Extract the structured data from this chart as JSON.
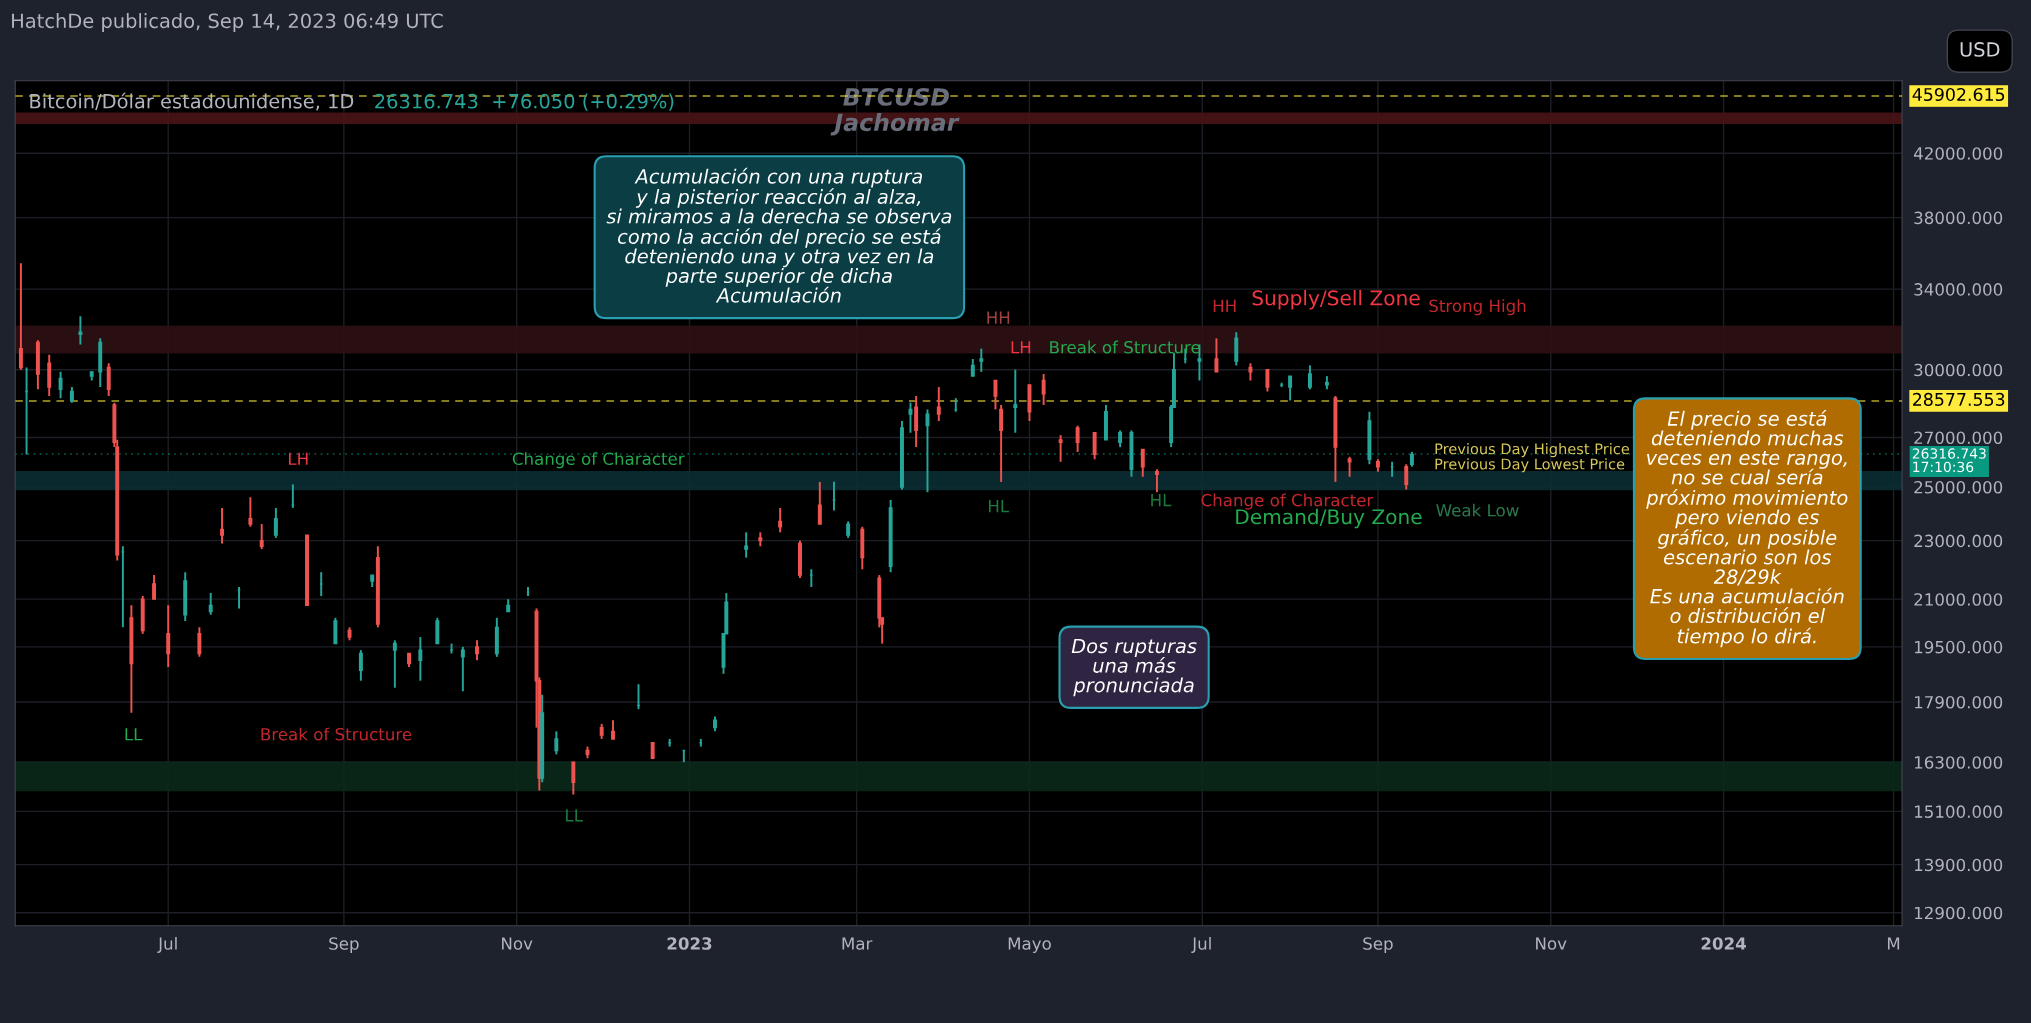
{
  "chart_data": {
    "type": "candlestick",
    "title": "Bitcoin/Dólar estadounidense, 1D",
    "subtitle": "26316.743  +76.050 (+0.29%)",
    "colors": [
      "#ef5350",
      "#26a69a",
      "#ef5350",
      "#ef5350",
      "#26a69a",
      "#26a69a",
      "#26a69a",
      "#26a69a",
      "#26a69a",
      "#ef5350",
      "#ef5350",
      "#ef5350",
      "#26a69a",
      "#ef5350",
      "#ef5350",
      "#ef5350",
      "#ef5350",
      "#26a69a",
      "#ef5350",
      "#26a69a",
      "#ef5350",
      "#26a69a",
      "#ef5350",
      "#ef5350",
      "#26a69a",
      "#26a69a",
      "#ef5350",
      "#26a69a",
      "#26a69a",
      "#ef5350",
      "#26a69a",
      "#26a69a",
      "#ef5350",
      "#26a69a",
      "#ef5350",
      "#26a69a",
      "#26a69a",
      "#26a69a",
      "#26a69a",
      "#ef5350",
      "#26a69a",
      "#26a69a",
      "#26a69a",
      "#ef5350",
      "#ef5350",
      "#26a69a",
      "#26a69a",
      "#ef5350",
      "#ef5350",
      "#ef5350",
      "#ef5350",
      "#26a69a",
      "#ef5350",
      "#26a69a",
      "#26a69a",
      "#26a69a",
      "#26a69a",
      "#26a69a",
      "#26a69a",
      "#26a69a",
      "#ef5350",
      "#ef5350",
      "#ef5350",
      "#26a69a",
      "#ef5350",
      "#26a69a",
      "#26a69a",
      "#ef5350",
      "#ef5350",
      "#ef5350",
      "#26a69a",
      "#26a69a",
      "#26a69a",
      "#ef5350",
      "#26a69a",
      "#ef5350",
      "#26a69a",
      "#26a69a",
      "#26a69a",
      "#ef5350",
      "#ef5350",
      "#26a69a",
      "#ef5350",
      "#ef5350",
      "#ef5350",
      "#ef5350",
      "#ef5350",
      "#26a69a",
      "#26a69a",
      "#26a69a",
      "#ef5350",
      "#ef5350",
      "#26a69a",
      "#26a69a",
      "#26a69a",
      "#26a69a",
      "#ef5350",
      "#26a69a",
      "#ef5350",
      "#ef5350",
      "#26a69a",
      "#26a69a",
      "#26a69a",
      "#26a69a",
      "#ef5350",
      "#ef5350",
      "#26a69a",
      "#ef5350",
      "#26a69a",
      "#ef5350",
      "#26a69a"
    ],
    "x": [
      "2022-05-10",
      "2022-05-12",
      "2022-05-16",
      "2022-05-20",
      "2022-05-24",
      "2022-05-28",
      "2022-05-31",
      "2022-06-04",
      "2022-06-07",
      "2022-06-10",
      "2022-06-12",
      "2022-06-13",
      "2022-06-15",
      "2022-06-18",
      "2022-06-22",
      "2022-06-26",
      "2022-07-01",
      "2022-07-07",
      "2022-07-12",
      "2022-07-16",
      "2022-07-20",
      "2022-07-26",
      "2022-07-30",
      "2022-08-03",
      "2022-08-08",
      "2022-08-14",
      "2022-08-19",
      "2022-08-24",
      "2022-08-29",
      "2022-09-03",
      "2022-09-07",
      "2022-09-11",
      "2022-09-13",
      "2022-09-19",
      "2022-09-24",
      "2022-09-28",
      "2022-10-04",
      "2022-10-09",
      "2022-10-13",
      "2022-10-18",
      "2022-10-25",
      "2022-10-29",
      "2022-11-05",
      "2022-11-08",
      "2022-11-09",
      "2022-11-10",
      "2022-11-15",
      "2022-11-21",
      "2022-11-26",
      "2022-12-01",
      "2022-12-05",
      "2022-12-14",
      "2022-12-19",
      "2022-12-25",
      "2022-12-30",
      "2023-01-05",
      "2023-01-10",
      "2023-01-13",
      "2023-01-14",
      "2023-01-21",
      "2023-01-26",
      "2023-02-02",
      "2023-02-09",
      "2023-02-13",
      "2023-02-16",
      "2023-02-21",
      "2023-02-26",
      "2023-03-03",
      "2023-03-09",
      "2023-03-10",
      "2023-03-13",
      "2023-03-17",
      "2023-03-20",
      "2023-03-22",
      "2023-03-26",
      "2023-03-30",
      "2023-04-05",
      "2023-04-11",
      "2023-04-14",
      "2023-04-19",
      "2023-04-21",
      "2023-04-26",
      "2023-05-01",
      "2023-05-06",
      "2023-05-12",
      "2023-05-18",
      "2023-05-24",
      "2023-05-28",
      "2023-06-02",
      "2023-06-06",
      "2023-06-10",
      "2023-06-15",
      "2023-06-20",
      "2023-06-21",
      "2023-06-25",
      "2023-06-30",
      "2023-07-06",
      "2023-07-13",
      "2023-07-18",
      "2023-07-24",
      "2023-07-29",
      "2023-08-01",
      "2023-08-08",
      "2023-08-14",
      "2023-08-17",
      "2023-08-22",
      "2023-08-29",
      "2023-09-01",
      "2023-09-06",
      "2023-09-11",
      "2023-09-13"
    ],
    "ohlc": [
      [
        31000,
        35400,
        30000,
        30100
      ],
      [
        29000,
        30100,
        26300,
        29000
      ],
      [
        31300,
        31400,
        29100,
        29800
      ],
      [
        30300,
        30700,
        28800,
        29200
      ],
      [
        29100,
        29900,
        28700,
        29600
      ],
      [
        28600,
        29200,
        28500,
        29000
      ],
      [
        31700,
        32600,
        31200,
        31800
      ],
      [
        29700,
        29900,
        29500,
        29900
      ],
      [
        29900,
        31500,
        29200,
        31300
      ],
      [
        30100,
        30300,
        28800,
        29100
      ],
      [
        28400,
        28500,
        26600,
        26800
      ],
      [
        26600,
        26900,
        22300,
        22500
      ],
      [
        22600,
        22800,
        20100,
        22600
      ],
      [
        20400,
        20800,
        17600,
        19000
      ],
      [
        21000,
        21100,
        19900,
        20000
      ],
      [
        21500,
        21800,
        21000,
        21000
      ],
      [
        19900,
        20800,
        18900,
        19300
      ],
      [
        20500,
        21900,
        20300,
        21600
      ],
      [
        19900,
        20100,
        19200,
        19300
      ],
      [
        20600,
        21200,
        20500,
        20800
      ],
      [
        23400,
        24200,
        22900,
        23200
      ],
      [
        21300,
        21400,
        20700,
        21300
      ],
      [
        23800,
        24600,
        23500,
        23600
      ],
      [
        23000,
        23600,
        22700,
        22800
      ],
      [
        23200,
        24200,
        23100,
        23800
      ],
      [
        24300,
        25100,
        24200,
        24300
      ],
      [
        23200,
        23200,
        20800,
        20800
      ],
      [
        21500,
        21900,
        21100,
        21500
      ],
      [
        19600,
        20400,
        19600,
        20300
      ],
      [
        20000,
        20100,
        19700,
        19800
      ],
      [
        18800,
        19400,
        18500,
        19300
      ],
      [
        21600,
        21800,
        21400,
        21800
      ],
      [
        22400,
        22800,
        20100,
        20200
      ],
      [
        19400,
        19700,
        18300,
        19600
      ],
      [
        19300,
        19300,
        18900,
        19000
      ],
      [
        19100,
        19800,
        18500,
        19400
      ],
      [
        19600,
        20400,
        19600,
        20300
      ],
      [
        19400,
        19600,
        19300,
        19400
      ],
      [
        19200,
        19500,
        18200,
        19400
      ],
      [
        19500,
        19700,
        19100,
        19300
      ],
      [
        19300,
        20400,
        19200,
        20100
      ],
      [
        20600,
        21000,
        20600,
        20800
      ],
      [
        21200,
        21400,
        21100,
        21200
      ],
      [
        20600,
        20700,
        17200,
        18500
      ],
      [
        18500,
        18600,
        15600,
        15900
      ],
      [
        15900,
        18100,
        15800,
        17600
      ],
      [
        16600,
        17100,
        16500,
        16900
      ],
      [
        16300,
        16300,
        15500,
        15800
      ],
      [
        16600,
        16700,
        16400,
        16500
      ],
      [
        17200,
        17300,
        16900,
        17000
      ],
      [
        17100,
        17400,
        16900,
        16900
      ],
      [
        17800,
        18400,
        17700,
        17800
      ],
      [
        16800,
        16800,
        16400,
        16400
      ],
      [
        16800,
        16900,
        16700,
        16800
      ],
      [
        16600,
        16600,
        16300,
        16600
      ],
      [
        16800,
        16900,
        16700,
        16800
      ],
      [
        17200,
        17500,
        17100,
        17400
      ],
      [
        18900,
        19900,
        18700,
        19900
      ],
      [
        19900,
        21200,
        19900,
        20900
      ],
      [
        22700,
        23300,
        22400,
        22800
      ],
      [
        23100,
        23300,
        22800,
        23000
      ],
      [
        23700,
        24200,
        23300,
        23500
      ],
      [
        22900,
        23000,
        21700,
        21800
      ],
      [
        21800,
        22000,
        21400,
        21800
      ],
      [
        24300,
        25200,
        23600,
        23600
      ],
      [
        24500,
        25200,
        24100,
        24500
      ],
      [
        23200,
        23700,
        23100,
        23600
      ],
      [
        23400,
        23500,
        22000,
        22400
      ],
      [
        21700,
        21800,
        20100,
        20400
      ],
      [
        20400,
        20400,
        19600,
        20200
      ],
      [
        22100,
        24500,
        21900,
        24200
      ],
      [
        25000,
        27700,
        24900,
        27400
      ],
      [
        28000,
        28500,
        27200,
        28200
      ],
      [
        28300,
        28800,
        26600,
        27300
      ],
      [
        27500,
        28200,
        24800,
        28000
      ],
      [
        28300,
        29200,
        27700,
        28000
      ],
      [
        28200,
        28700,
        28100,
        28200
      ],
      [
        29700,
        30500,
        29700,
        30200
      ],
      [
        30400,
        31000,
        29900,
        30500
      ],
      [
        29500,
        29500,
        28200,
        28800
      ],
      [
        28200,
        28400,
        25200,
        27300
      ],
      [
        28300,
        30000,
        27200,
        28400
      ],
      [
        29300,
        29300,
        27700,
        28100
      ],
      [
        29500,
        29800,
        28400,
        28900
      ],
      [
        26900,
        27100,
        26000,
        26800
      ],
      [
        27400,
        27500,
        26400,
        26800
      ],
      [
        27200,
        27200,
        26100,
        26300
      ],
      [
        26900,
        28400,
        26900,
        28100
      ],
      [
        26800,
        27300,
        26600,
        27200
      ],
      [
        25700,
        27300,
        25400,
        27200
      ],
      [
        26500,
        26500,
        25400,
        25800
      ],
      [
        25600,
        25700,
        24800,
        25500
      ],
      [
        26800,
        28400,
        26600,
        28300
      ],
      [
        28300,
        30800,
        28300,
        30000
      ],
      [
        30500,
        31000,
        30300,
        30500
      ],
      [
        30400,
        31200,
        29500,
        30500
      ],
      [
        30500,
        31500,
        29900,
        29900
      ],
      [
        30400,
        31800,
        30200,
        31500
      ],
      [
        30100,
        30300,
        29500,
        29900
      ],
      [
        30000,
        30000,
        29000,
        29200
      ],
      [
        29300,
        29400,
        29200,
        29300
      ],
      [
        29200,
        29700,
        28600,
        29700
      ],
      [
        29200,
        30200,
        29100,
        29800
      ],
      [
        29300,
        29700,
        29100,
        29400
      ],
      [
        28700,
        28800,
        25200,
        26600
      ],
      [
        26100,
        26200,
        25400,
        26000
      ],
      [
        26100,
        28100,
        25900,
        27700
      ],
      [
        26000,
        26100,
        25600,
        25800
      ],
      [
        25800,
        26000,
        25400,
        25800
      ],
      [
        25800,
        25900,
        24900,
        25100
      ],
      [
        25900,
        26400,
        25800,
        26300
      ]
    ],
    "log": "y",
    "xlim": [
      "2022-05-08",
      "2024-03-04"
    ],
    "xticks": [
      {
        "value": "2022-07-01",
        "label": "Jul"
      },
      {
        "value": "2022-09-01",
        "label": "Sep"
      },
      {
        "value": "2022-11-01",
        "label": "Nov"
      },
      {
        "value": "2023-01-01",
        "label": "2023"
      },
      {
        "value": "2023-03-01",
        "label": "Mar"
      },
      {
        "value": "2023-05-01",
        "label": "Mayo"
      },
      {
        "value": "2023-07-01",
        "label": "Jul"
      },
      {
        "value": "2023-09-01",
        "label": "Sep"
      },
      {
        "value": "2023-11-01",
        "label": "Nov"
      },
      {
        "value": "2024-01-01",
        "label": "2024"
      },
      {
        "value": "2024-03-01",
        "label": "M"
      }
    ],
    "ylim": [
      12640,
      47000
    ],
    "yticks": [
      {
        "value": 12900,
        "label": "12900.000"
      },
      {
        "value": 13900,
        "label": "13900.000"
      },
      {
        "value": 15100,
        "label": "15100.000"
      },
      {
        "value": 16300,
        "label": "16300.000"
      },
      {
        "value": 17900,
        "label": "17900.000"
      },
      {
        "value": 19500,
        "label": "19500.000"
      },
      {
        "value": 21000,
        "label": "21000.000"
      },
      {
        "value": 23000,
        "label": "23000.000"
      },
      {
        "value": 25000,
        "label": "25000.000"
      },
      {
        "value": 27000,
        "label": "27000.000"
      },
      {
        "value": 30000,
        "label": "30000.000"
      },
      {
        "value": 34000,
        "label": "34000.000"
      },
      {
        "value": 38000,
        "label": "38000.000"
      },
      {
        "value": 42000,
        "label": "42000.000"
      }
    ],
    "grid": true,
    "bands": [
      {
        "axis": "y",
        "from": 44000,
        "to": 44700,
        "color": "#4a1418"
      },
      {
        "axis": "y",
        "from": 30800,
        "to": 32100,
        "color": "#2e1014"
      },
      {
        "axis": "y",
        "from": 24900,
        "to": 25600,
        "color": "#0a2e33"
      },
      {
        "axis": "y",
        "from": 15600,
        "to": 16300,
        "color": "#0b2a1a"
      }
    ],
    "ref_lines": [
      {
        "axis": "y",
        "value": 45902.615,
        "label": "45902.615",
        "color": "#ffeb3b",
        "line_style": "dashed"
      },
      {
        "axis": "y",
        "value": 28577.553,
        "label": "28577.553",
        "color": "#ffeb3b",
        "line_style": "dashed"
      },
      {
        "axis": "y",
        "value": 26316.743,
        "label": "26316.743\n17:10:36",
        "color": "#089981",
        "line_style": "dotted"
      }
    ],
    "annotations": [
      "HatchDe publicado, Sep 14, 2023 06:49 UTC",
      "USD",
      "BTCUSD",
      "Jachomar",
      "LH",
      "LL",
      "Break of Structure",
      "Change of Character",
      "LL",
      "HH",
      "LH",
      "Break of Structure",
      "HL",
      "HL",
      "Change of Character",
      "Demand/Buy Zone",
      "HH",
      "Supply/Sell Zone",
      "Strong High",
      "Weak Low",
      "Previous Day Highest Price",
      "Previous Day Lowest Price",
      "Acumulación con una ruptura\ny la pisterior reacción al alza,\nsi miramos a la derecha se observa\ncomo la acción del precio se está\ndeteniendo una y otra vez en la\nparte superior de dicha\nAcumulación",
      "Dos rupturas\nuna más\npronunciada",
      "El precio se está\ndeteniendo muchas\nveces en este rango,\nno se cual sería\npróximo movimiento\npero viendo es\ngráfico, un posible\nescenario son los\n28/29k\nEs una acumulación\no distribución el\ntiempo lo dirá."
    ]
  }
}
